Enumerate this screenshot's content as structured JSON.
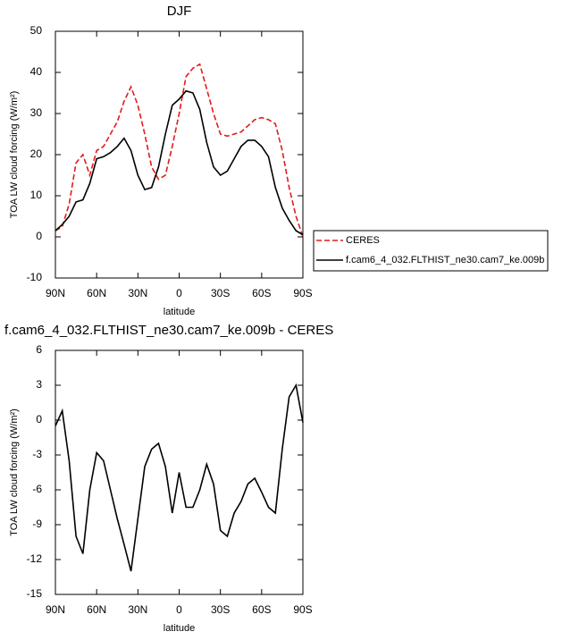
{
  "chart_data": [
    {
      "type": "line",
      "title": "DJF",
      "xlabel": "latitude",
      "ylabel": "TOA LW cloud forcing (W/m²)",
      "x": [
        90,
        85,
        80,
        75,
        70,
        65,
        60,
        55,
        50,
        45,
        40,
        35,
        30,
        25,
        20,
        15,
        10,
        5,
        0,
        -5,
        -10,
        -15,
        -20,
        -25,
        -30,
        -35,
        -40,
        -45,
        -50,
        -55,
        -60,
        -65,
        -70,
        -75,
        -80,
        -85,
        -90
      ],
      "series": [
        {
          "name": "CERES",
          "color": "#e41a1c",
          "line_style": "dashed",
          "values": [
            1.5,
            2.5,
            8,
            18,
            20,
            15,
            21,
            22,
            25,
            28,
            33,
            36.5,
            32,
            25,
            17,
            14,
            15,
            22,
            30,
            39,
            41,
            42,
            36,
            30,
            25,
            24.5,
            25,
            25.5,
            27,
            28.5,
            29,
            28.5,
            27.5,
            21,
            12,
            5,
            0
          ]
        },
        {
          "name": "f.cam6_4_032.FLTHIST_ne30.cam7_ke.009b",
          "color": "#000000",
          "line_style": "solid",
          "values": [
            1.5,
            3,
            5,
            8.5,
            9,
            13,
            19,
            19.5,
            20.5,
            22,
            24,
            21,
            15,
            11.5,
            12,
            17,
            25,
            32,
            33.5,
            35.5,
            35,
            31,
            23,
            17,
            15,
            16,
            19,
            22,
            23.5,
            23.5,
            22,
            19.5,
            12,
            7,
            4,
            1.5,
            0.5
          ]
        }
      ],
      "xlim": [
        90,
        -90
      ],
      "xticks": [
        {
          "value": 90,
          "label": "90N"
        },
        {
          "value": 60,
          "label": "60N"
        },
        {
          "value": 30,
          "label": "30N"
        },
        0,
        {
          "value": -30,
          "label": "30S"
        },
        {
          "value": -60,
          "label": "60S"
        },
        {
          "value": -90,
          "label": "90S"
        }
      ],
      "ylim": [
        -10,
        50
      ],
      "yticks": [
        -10,
        0,
        10,
        20,
        30,
        40,
        50
      ],
      "legend": "outside-right"
    },
    {
      "type": "line",
      "title": "f.cam6_4_032.FLTHIST_ne30.cam7_ke.009b - CERES",
      "xlabel": "latitude",
      "ylabel": "TOA LW cloud forcing (W/m²)",
      "x": [
        90,
        85,
        80,
        75,
        70,
        65,
        60,
        55,
        50,
        45,
        40,
        35,
        30,
        25,
        20,
        15,
        10,
        5,
        0,
        -5,
        -10,
        -15,
        -20,
        -25,
        -30,
        -35,
        -40,
        -45,
        -50,
        -55,
        -60,
        -65,
        -70,
        -75,
        -80,
        -85,
        -90
      ],
      "series": [
        {
          "color": "#000000",
          "line_style": "solid",
          "values": [
            -0.5,
            0.8,
            -3.5,
            -10,
            -11.5,
            -6,
            -2.8,
            -3.5,
            -6,
            -8.5,
            -10.7,
            -13,
            -8.5,
            -4,
            -2.5,
            -2,
            -4,
            -8,
            -4.5,
            -7.5,
            -7.5,
            -6,
            -3.8,
            -5.5,
            -9.5,
            -10,
            -8,
            -7,
            -5.5,
            -5,
            -6.2,
            -7.5,
            -8,
            -2.5,
            2,
            3,
            -0.2
          ]
        }
      ],
      "xlim": [
        90,
        -90
      ],
      "xticks": [
        {
          "value": 90,
          "label": "90N"
        },
        {
          "value": 60,
          "label": "60N"
        },
        {
          "value": 30,
          "label": "30N"
        },
        0,
        {
          "value": -30,
          "label": "30S"
        },
        {
          "value": -60,
          "label": "60S"
        },
        {
          "value": -90,
          "label": "90S"
        }
      ],
      "ylim": [
        -15,
        6
      ],
      "yticks": [
        -15,
        -12,
        -9,
        -6,
        -3,
        0,
        3,
        6
      ]
    }
  ]
}
